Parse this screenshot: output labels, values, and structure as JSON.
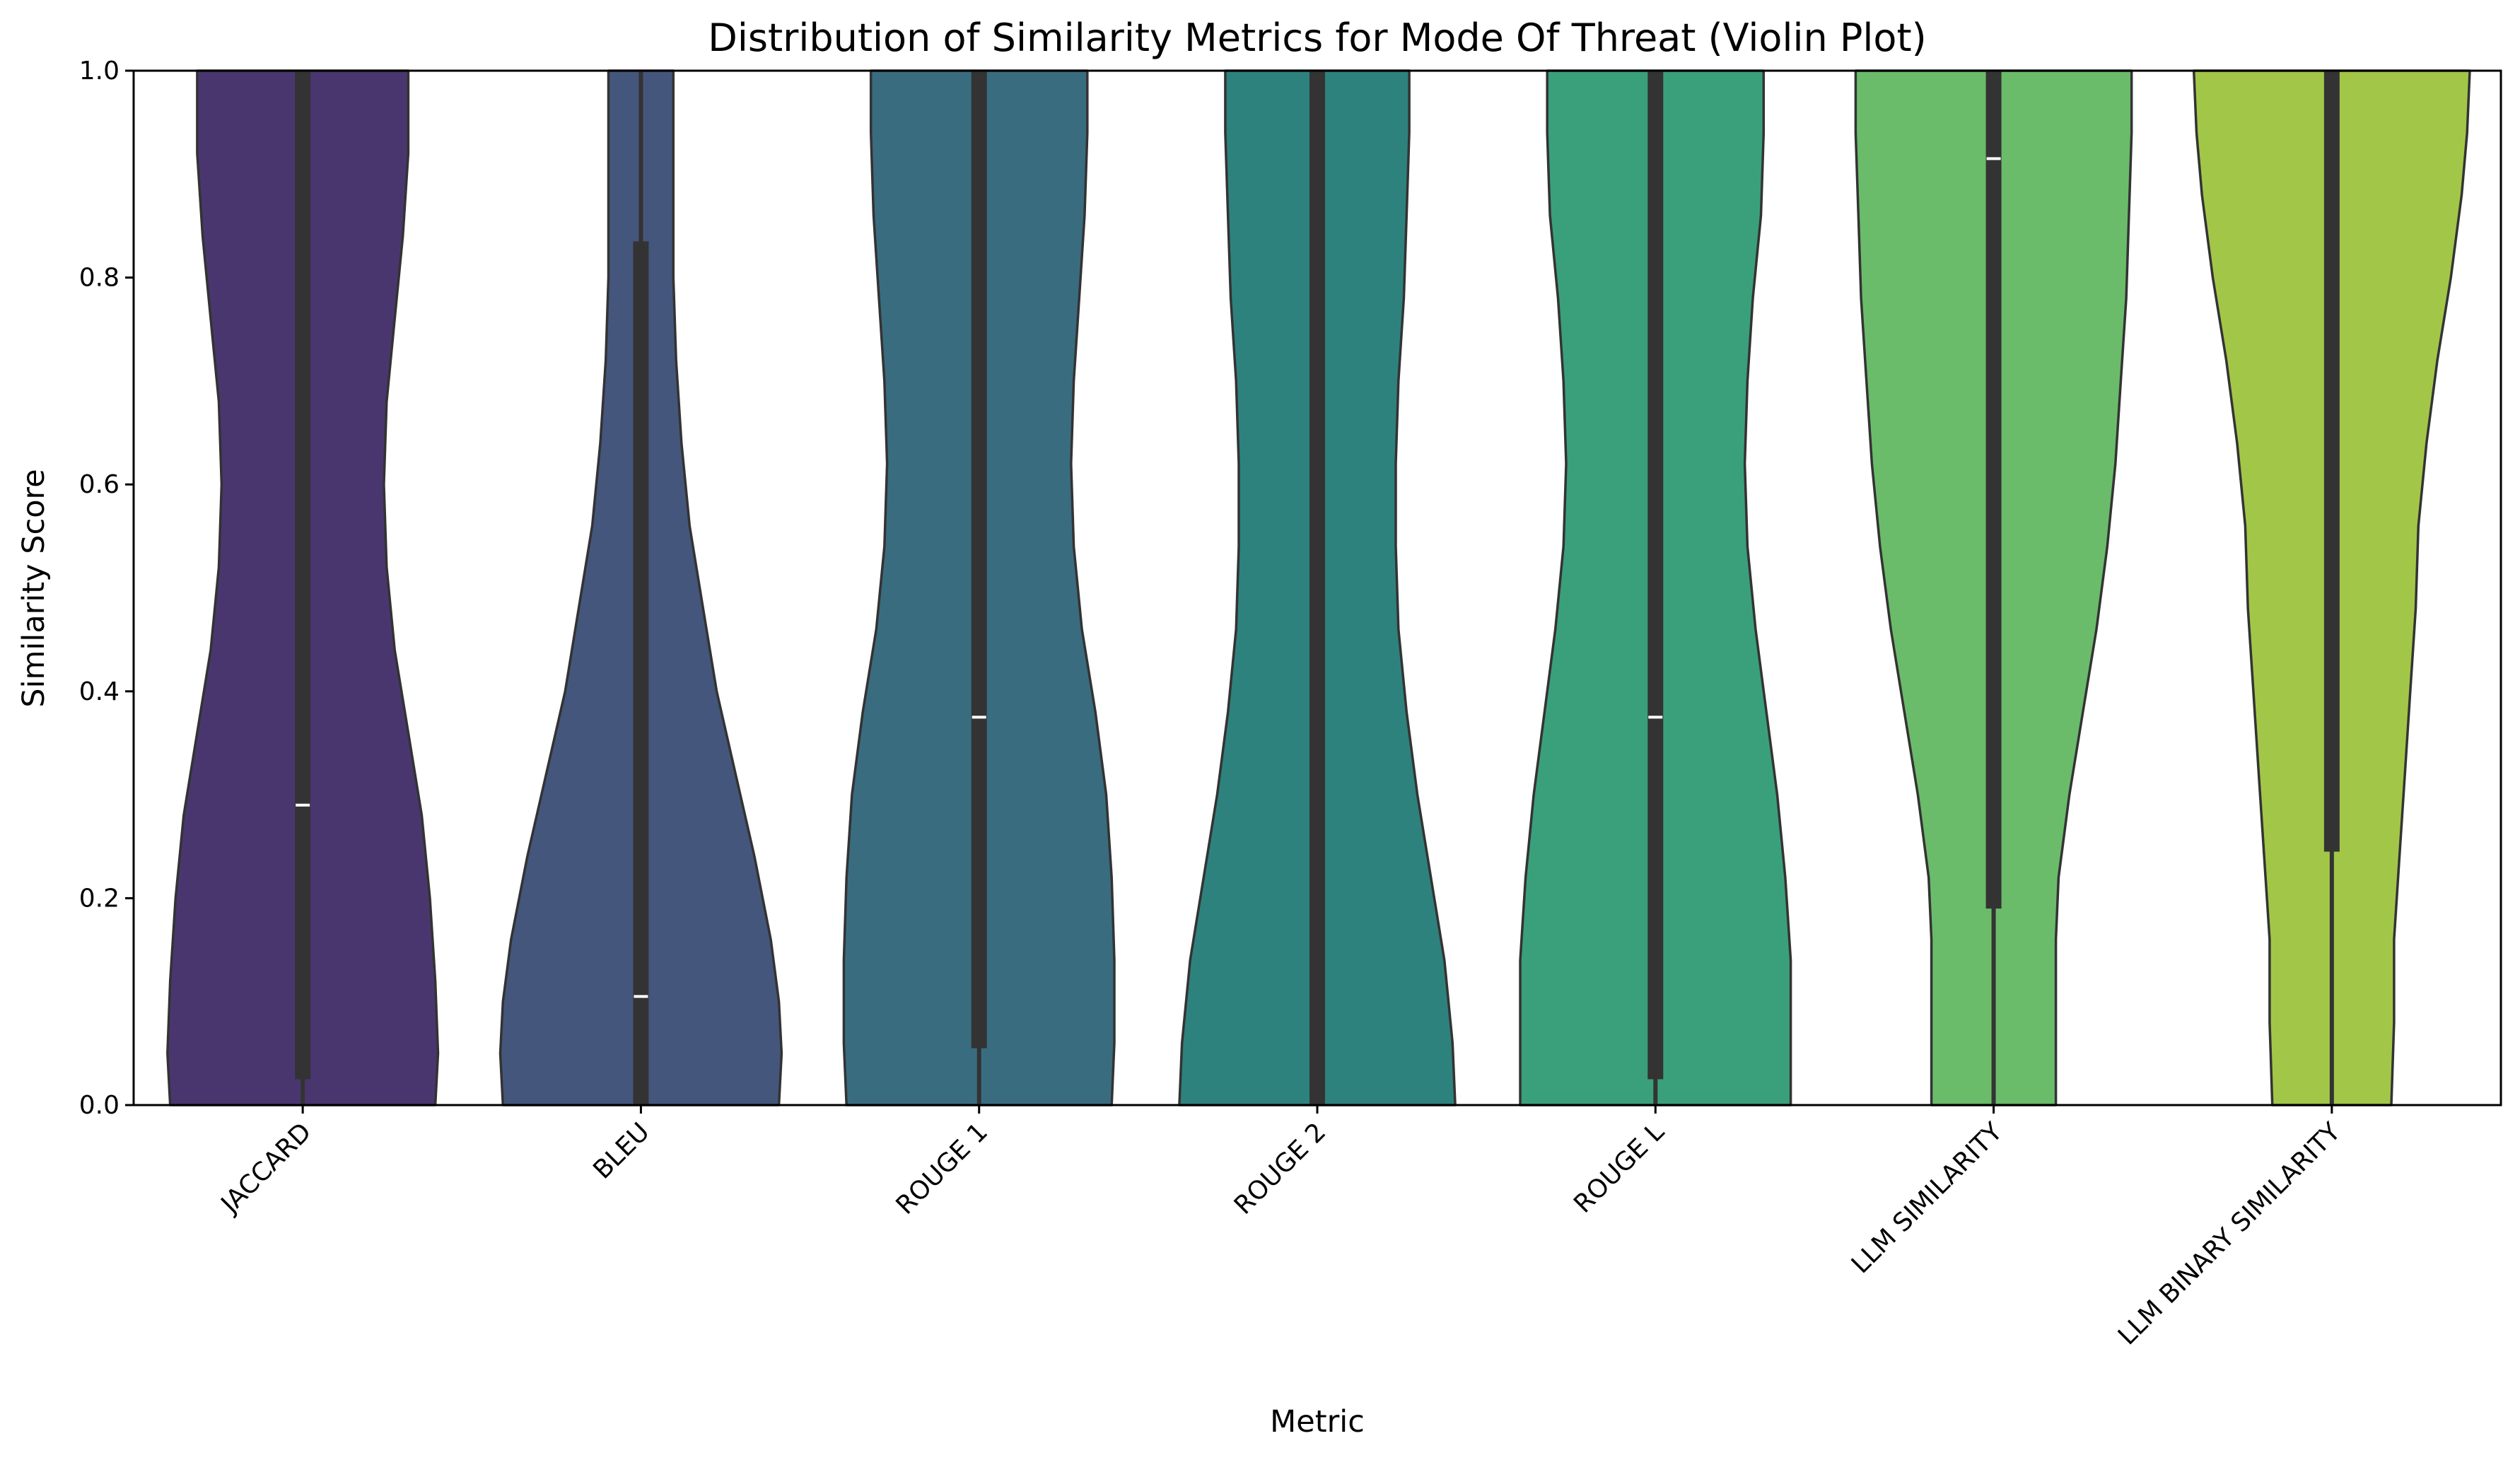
{
  "chart_data": {
    "type": "violin",
    "title": "Distribution of Similarity Metrics for Mode Of Threat (Violin Plot)",
    "xlabel": "Metric",
    "ylabel": "Similarity Score",
    "ylim": [
      0,
      1.0
    ],
    "yticks": [
      "0.0",
      "0.2",
      "0.4",
      "0.6",
      "0.8",
      "1.0"
    ],
    "grid": false,
    "legend": "none",
    "categories": [
      "JACCARD",
      "BLEU",
      "ROUGE 1",
      "ROUGE 2",
      "ROUGE L",
      "LLM SIMILARITY",
      "LLM BINARY SIMILARITY"
    ],
    "series": [
      {
        "category": "JACCARD",
        "color": "#4a366f",
        "median": 0.29,
        "q1": 0.025,
        "q3": 1.0,
        "whisker_low": 0.0,
        "whisker_high": 1.0,
        "density": [
          [
            0.0,
            0.49
          ],
          [
            0.05,
            0.5
          ],
          [
            0.12,
            0.49
          ],
          [
            0.2,
            0.47
          ],
          [
            0.28,
            0.44
          ],
          [
            0.36,
            0.39
          ],
          [
            0.44,
            0.34
          ],
          [
            0.52,
            0.31
          ],
          [
            0.6,
            0.3
          ],
          [
            0.68,
            0.31
          ],
          [
            0.76,
            0.34
          ],
          [
            0.84,
            0.37
          ],
          [
            0.92,
            0.39
          ],
          [
            1.0,
            0.39
          ]
        ]
      },
      {
        "category": "BLEU",
        "color": "#45567d",
        "median": 0.105,
        "q1": 0.0,
        "q3": 0.835,
        "whisker_low": 0.0,
        "whisker_high": 1.0,
        "density": [
          [
            0.0,
            0.51
          ],
          [
            0.05,
            0.52
          ],
          [
            0.1,
            0.51
          ],
          [
            0.16,
            0.48
          ],
          [
            0.24,
            0.42
          ],
          [
            0.32,
            0.35
          ],
          [
            0.4,
            0.28
          ],
          [
            0.48,
            0.23
          ],
          [
            0.56,
            0.18
          ],
          [
            0.64,
            0.15
          ],
          [
            0.72,
            0.13
          ],
          [
            0.8,
            0.12
          ],
          [
            0.88,
            0.12
          ],
          [
            1.0,
            0.12
          ]
        ]
      },
      {
        "category": "ROUGE 1",
        "color": "#3a6c80",
        "median": 0.375,
        "q1": 0.055,
        "q3": 1.0,
        "whisker_low": 0.0,
        "whisker_high": 1.0,
        "density": [
          [
            0.0,
            0.49
          ],
          [
            0.06,
            0.5
          ],
          [
            0.14,
            0.5
          ],
          [
            0.22,
            0.49
          ],
          [
            0.3,
            0.47
          ],
          [
            0.38,
            0.43
          ],
          [
            0.46,
            0.38
          ],
          [
            0.54,
            0.35
          ],
          [
            0.62,
            0.34
          ],
          [
            0.7,
            0.35
          ],
          [
            0.78,
            0.37
          ],
          [
            0.86,
            0.39
          ],
          [
            0.94,
            0.4
          ],
          [
            1.0,
            0.4
          ]
        ]
      },
      {
        "category": "ROUGE 2",
        "color": "#2e827d",
        "median": null,
        "q1": 0.0,
        "q3": 1.0,
        "whisker_low": 0.0,
        "whisker_high": 1.0,
        "density": [
          [
            0.0,
            0.51
          ],
          [
            0.06,
            0.5
          ],
          [
            0.14,
            0.47
          ],
          [
            0.22,
            0.42
          ],
          [
            0.3,
            0.37
          ],
          [
            0.38,
            0.33
          ],
          [
            0.46,
            0.3
          ],
          [
            0.54,
            0.29
          ],
          [
            0.62,
            0.29
          ],
          [
            0.7,
            0.3
          ],
          [
            0.78,
            0.32
          ],
          [
            0.86,
            0.33
          ],
          [
            0.94,
            0.34
          ],
          [
            1.0,
            0.34
          ]
        ]
      },
      {
        "category": "ROUGE L",
        "color": "#3aa07b",
        "median": 0.375,
        "q1": 0.025,
        "q3": 1.0,
        "whisker_low": 0.0,
        "whisker_high": 1.0,
        "density": [
          [
            0.0,
            0.5
          ],
          [
            0.06,
            0.5
          ],
          [
            0.14,
            0.5
          ],
          [
            0.22,
            0.48
          ],
          [
            0.3,
            0.45
          ],
          [
            0.38,
            0.41
          ],
          [
            0.46,
            0.37
          ],
          [
            0.54,
            0.34
          ],
          [
            0.62,
            0.33
          ],
          [
            0.7,
            0.34
          ],
          [
            0.78,
            0.36
          ],
          [
            0.86,
            0.39
          ],
          [
            0.94,
            0.4
          ],
          [
            1.0,
            0.4
          ]
        ]
      },
      {
        "category": "LLM SIMILARITY",
        "color": "#6abc6a",
        "median": 0.915,
        "q1": 0.19,
        "q3": 1.0,
        "whisker_low": 0.0,
        "whisker_high": 1.0,
        "density": [
          [
            0.0,
            0.23
          ],
          [
            0.08,
            0.23
          ],
          [
            0.16,
            0.23
          ],
          [
            0.22,
            0.24
          ],
          [
            0.3,
            0.28
          ],
          [
            0.38,
            0.33
          ],
          [
            0.46,
            0.38
          ],
          [
            0.54,
            0.42
          ],
          [
            0.62,
            0.45
          ],
          [
            0.7,
            0.47
          ],
          [
            0.78,
            0.49
          ],
          [
            0.86,
            0.5
          ],
          [
            0.94,
            0.51
          ],
          [
            1.0,
            0.51
          ]
        ]
      },
      {
        "category": "LLM BINARY SIMILARITY",
        "color": "#a2c748",
        "median": null,
        "q1": 0.245,
        "q3": 1.0,
        "whisker_low": 0.0,
        "whisker_high": 1.0,
        "density": [
          [
            0.0,
            0.22
          ],
          [
            0.08,
            0.23
          ],
          [
            0.16,
            0.23
          ],
          [
            0.24,
            0.25
          ],
          [
            0.32,
            0.27
          ],
          [
            0.4,
            0.29
          ],
          [
            0.48,
            0.31
          ],
          [
            0.56,
            0.32
          ],
          [
            0.64,
            0.35
          ],
          [
            0.72,
            0.39
          ],
          [
            0.8,
            0.44
          ],
          [
            0.88,
            0.48
          ],
          [
            0.94,
            0.5
          ],
          [
            1.0,
            0.51
          ]
        ]
      }
    ]
  }
}
